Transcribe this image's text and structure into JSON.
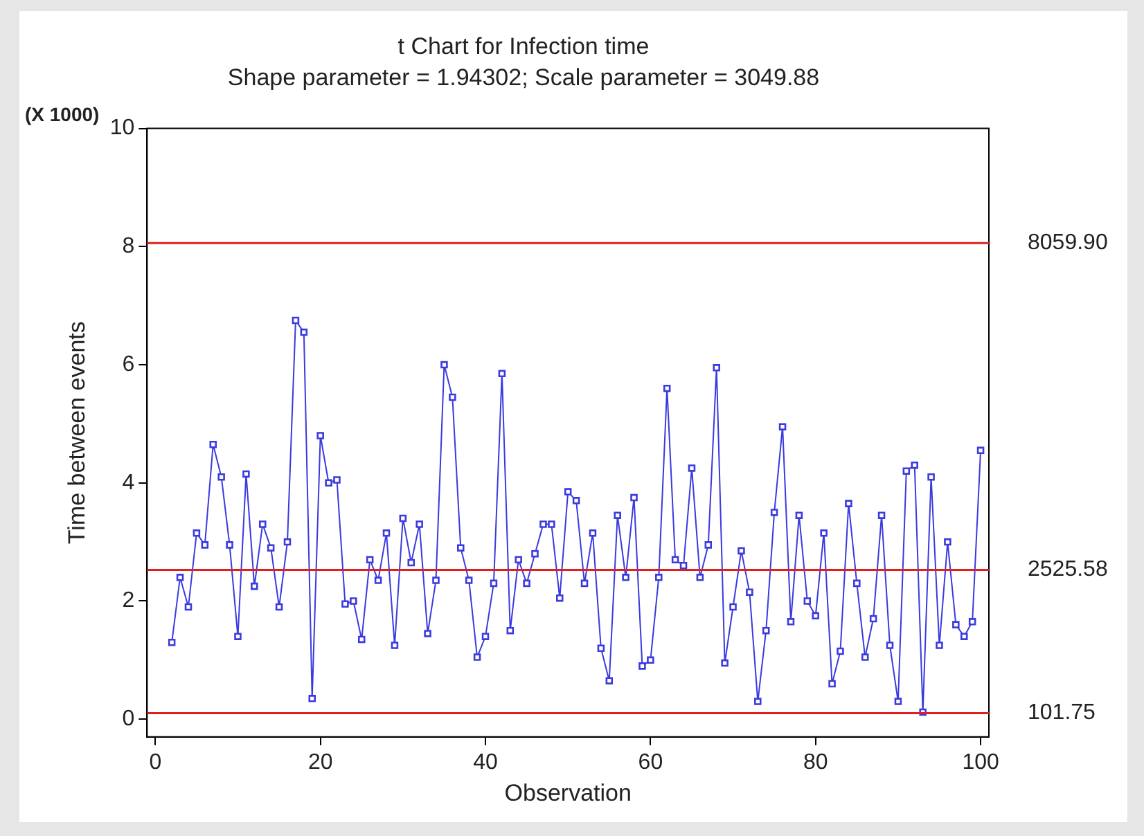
{
  "chart_data": {
    "type": "line",
    "title": "t Chart for Infection time",
    "subtitle": "Shape parameter = 1.94302; Scale parameter = 3049.88",
    "xlabel": "Observation",
    "ylabel": "Time between events",
    "annotations": [
      "(X 1000)"
    ],
    "x": [
      2,
      3,
      4,
      5,
      6,
      7,
      8,
      9,
      10,
      11,
      12,
      13,
      14,
      15,
      16,
      17,
      18,
      19,
      20,
      21,
      22,
      23,
      24,
      25,
      26,
      27,
      28,
      29,
      30,
      31,
      32,
      33,
      34,
      35,
      36,
      37,
      38,
      39,
      40,
      41,
      42,
      43,
      44,
      45,
      46,
      47,
      48,
      49,
      50,
      51,
      52,
      53,
      54,
      55,
      56,
      57,
      58,
      59,
      60,
      61,
      62,
      63,
      64,
      65,
      66,
      67,
      68,
      69,
      70,
      71,
      72,
      73,
      74,
      75,
      76,
      77,
      78,
      79,
      80,
      81,
      82,
      83,
      84,
      85,
      86,
      87,
      88,
      89,
      90,
      91,
      92,
      93,
      94,
      95,
      96,
      97,
      98,
      99,
      100
    ],
    "series": [
      {
        "color": "#3a3ae0",
        "values": [
          1.3,
          2.4,
          1.9,
          3.15,
          2.95,
          4.65,
          4.1,
          2.95,
          1.4,
          4.15,
          2.25,
          3.3,
          2.9,
          1.9,
          3.0,
          6.75,
          6.55,
          0.35,
          4.8,
          4.0,
          4.05,
          1.95,
          2.0,
          1.35,
          2.7,
          2.35,
          3.15,
          1.25,
          3.4,
          2.65,
          3.3,
          1.45,
          2.35,
          6.0,
          5.45,
          2.9,
          2.35,
          1.05,
          1.4,
          2.3,
          5.85,
          1.5,
          2.7,
          2.3,
          2.8,
          3.3,
          3.3,
          2.05,
          3.85,
          3.7,
          2.3,
          3.15,
          1.2,
          0.65,
          3.45,
          2.4,
          3.75,
          0.9,
          1.0,
          2.4,
          5.6,
          2.7,
          2.6,
          4.25,
          2.4,
          2.95,
          5.95,
          0.95,
          1.9,
          2.85,
          2.15,
          0.3,
          1.5,
          3.5,
          4.95,
          1.65,
          3.45,
          2.0,
          1.75,
          3.15,
          0.6,
          1.15,
          3.65,
          2.3,
          1.05,
          1.7,
          3.45,
          1.25,
          0.3,
          4.2,
          4.3,
          0.12,
          4.1,
          1.25,
          3.0,
          1.6,
          1.4,
          1.65,
          4.55
        ]
      }
    ],
    "xlim": [
      -1,
      101
    ],
    "xticks": [
      0,
      20,
      40,
      60,
      80,
      100
    ],
    "ylim": [
      -0.3,
      10
    ],
    "yticks": [
      0,
      2,
      4,
      6,
      8,
      10
    ],
    "marker": "square",
    "line_style": "solid",
    "legend": false,
    "ref_lines": [
      {
        "axis": "y",
        "value": 8.0599,
        "label": "8059.90",
        "color": "#e02020"
      },
      {
        "axis": "y",
        "value": 2.52558,
        "label": "2525.58",
        "color": "#e02020"
      },
      {
        "axis": "y",
        "value": 0.10175,
        "label": "101.75",
        "color": "#e02020"
      }
    ]
  }
}
